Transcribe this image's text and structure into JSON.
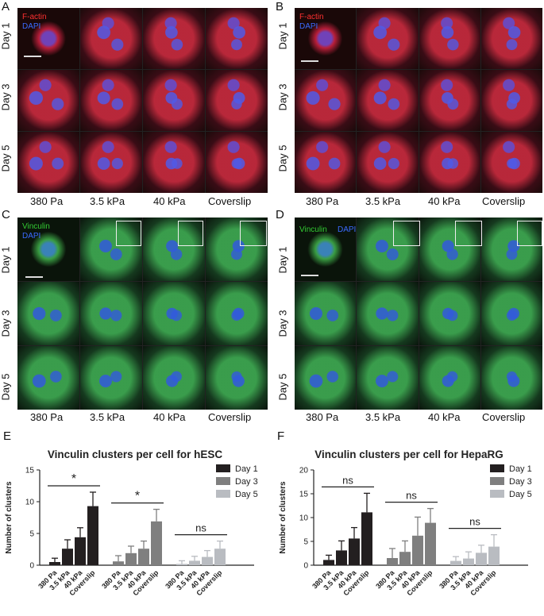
{
  "panels": {
    "A": {
      "letter": "A",
      "stain1": "F-actin",
      "stain2": "DAPI",
      "stain1_color": "#ff3030",
      "stain2_color": "#3b6bff",
      "theme": "red"
    },
    "B": {
      "letter": "B",
      "stain1": "F-actin",
      "stain2": "DAPI",
      "stain1_color": "#ff3030",
      "stain2_color": "#3b6bff",
      "theme": "red"
    },
    "C": {
      "letter": "C",
      "stain1": "Vinculin",
      "stain2": "DAPI",
      "stain1_color": "#33cc33",
      "stain2_color": "#3b6bff",
      "theme": "green"
    },
    "D": {
      "letter": "D",
      "stain1": "Vinculin",
      "stain2": "DAPI",
      "stain1_color": "#33cc33",
      "stain2_color": "#3b6bff",
      "theme": "green"
    },
    "E": {
      "letter": "E"
    },
    "F": {
      "letter": "F"
    }
  },
  "rows": [
    "Day 1",
    "Day 3",
    "Day 5"
  ],
  "columns": [
    "380 Pa",
    "3.5 kPa",
    "40 kPa",
    "Coverslip"
  ],
  "chart_data": [
    {
      "type": "bar",
      "title": "Vinculin clusters per cell for hESC",
      "ylabel": "Number of clusters",
      "ylim": [
        0,
        15
      ],
      "yticks": [
        0,
        5,
        10,
        15
      ],
      "categories": [
        "380 Pa",
        "3.5 kPa",
        "40 kPa",
        "Coverslip"
      ],
      "series": [
        {
          "name": "Day 1",
          "color": "#231f20",
          "values": [
            0.5,
            2.6,
            4.4,
            9.3
          ],
          "errors": [
            0.6,
            1.4,
            1.5,
            2.2
          ]
        },
        {
          "name": "Day 3",
          "color": "#7f7f7f",
          "values": [
            0.6,
            1.9,
            2.6,
            6.9
          ],
          "errors": [
            0.9,
            1.1,
            1.2,
            1.9
          ]
        },
        {
          "name": "Day 5",
          "color": "#b9bcc1",
          "values": [
            0.2,
            0.7,
            1.3,
            2.6
          ],
          "errors": [
            0.5,
            0.7,
            1.0,
            1.2
          ]
        }
      ],
      "significance": [
        "*",
        "*",
        "ns"
      ],
      "legend": "top-right"
    },
    {
      "type": "bar",
      "title": "Vinculin clusters per cell for HepaRG",
      "ylabel": "Number of clusters",
      "ylim": [
        0,
        20
      ],
      "yticks": [
        0,
        5,
        10,
        15,
        20
      ],
      "categories": [
        "380 Pa",
        "3.5 kPa",
        "40 kPa",
        "Coverslip"
      ],
      "series": [
        {
          "name": "Day 1",
          "color": "#231f20",
          "values": [
            1.1,
            3.1,
            5.6,
            11.1
          ],
          "errors": [
            1.0,
            2.0,
            2.3,
            4.0
          ]
        },
        {
          "name": "Day 3",
          "color": "#7f7f7f",
          "values": [
            1.5,
            2.8,
            6.2,
            8.9
          ],
          "errors": [
            2.0,
            2.3,
            3.9,
            3.0
          ]
        },
        {
          "name": "Day 5",
          "color": "#b9bcc1",
          "values": [
            0.9,
            1.4,
            2.6,
            3.9
          ],
          "errors": [
            0.9,
            1.4,
            1.6,
            2.5
          ]
        }
      ],
      "significance": [
        "ns",
        "ns",
        "ns"
      ],
      "legend": "top-right"
    }
  ]
}
